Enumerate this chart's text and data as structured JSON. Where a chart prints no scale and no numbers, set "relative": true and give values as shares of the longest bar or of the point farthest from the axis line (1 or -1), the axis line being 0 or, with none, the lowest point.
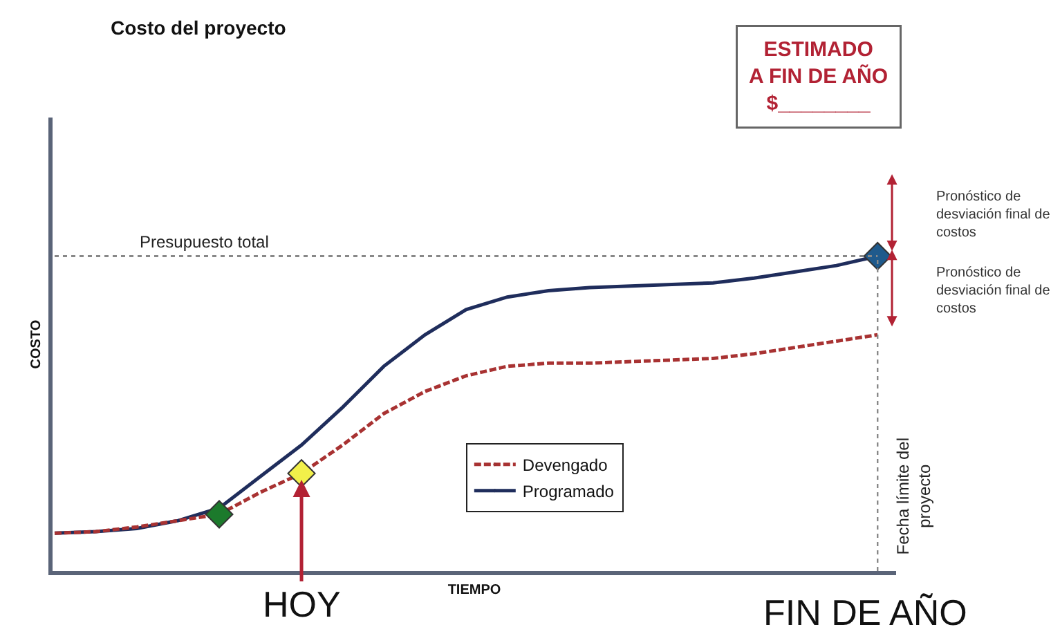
{
  "chart_data": {
    "type": "line",
    "title": "Costo del proyecto",
    "xlabel": "TIEMPO",
    "ylabel": "COSTO",
    "relative": true,
    "legend": "bottom",
    "categories": [
      null,
      null,
      null,
      null,
      null,
      null,
      null,
      null,
      null,
      null,
      null,
      null,
      null,
      null,
      null,
      null,
      null,
      null,
      null,
      null,
      null
    ],
    "series": [
      {
        "name": "Devengado",
        "color": "#a83232",
        "line_style": "dashed",
        "colors": [
          null,
          null,
          null,
          null,
          "#1c7a2c",
          null,
          "#f2f04a",
          null,
          null,
          null,
          null,
          null,
          null,
          null,
          null,
          null,
          null,
          null,
          null,
          null,
          null
        ],
        "values": [
          0.12,
          0.125,
          0.14,
          0.16,
          0.18,
          0.25,
          0.31,
          0.4,
          0.5,
          0.57,
          0.62,
          0.65,
          0.66,
          0.66,
          0.665,
          0.67,
          0.675,
          0.69,
          0.71,
          0.73,
          0.75
        ]
      },
      {
        "name": "Programado",
        "color": "#1f2d5c",
        "line_style": "solid",
        "colors": [
          null,
          null,
          null,
          null,
          null,
          null,
          null,
          null,
          null,
          null,
          null,
          null,
          null,
          null,
          null,
          null,
          null,
          null,
          null,
          null,
          "#1f5a8c"
        ],
        "values": [
          0.12,
          0.125,
          0.135,
          0.16,
          0.2,
          0.3,
          0.4,
          0.52,
          0.65,
          0.75,
          0.83,
          0.87,
          0.89,
          0.9,
          0.905,
          0.91,
          0.915,
          0.93,
          0.95,
          0.97,
          1.0
        ]
      }
    ],
    "ref_lines": [
      {
        "axis": "y",
        "value": 1,
        "label": "Presupuesto total",
        "line_style": "dotted",
        "color": "#888888"
      },
      {
        "axis": "x",
        "label": "Fecha límite del\nproyecto",
        "line_style": "dotted",
        "color": "#888888"
      }
    ],
    "annotations": [
      "HOY",
      "FIN DE AÑO",
      "ESTIMADO\nA FIN DE AÑO\n$________",
      "Pronóstico de\ndesviación final de\ncostos",
      "Pronóstico de\ndesviación final de\ncostos"
    ]
  }
}
